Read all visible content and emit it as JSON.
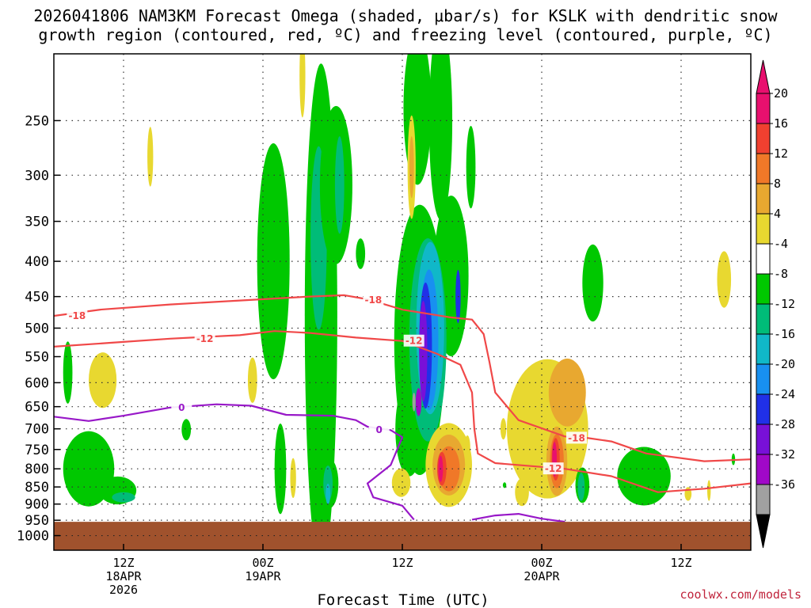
{
  "chart_data": {
    "type": "heatmap",
    "title_line1": "2026041806 NAM3KM Forecast Omega (shaded, μbar/s) for KSLK with dendritic snow",
    "title_line2": "growth region (contoured, red, ºC) and freezing level (contoured, purple, ºC)",
    "xlabel": "Forecast Time (UTC)",
    "credit": "coolwx.com/models",
    "y_axis": {
      "unit": "hPa",
      "scale": "log",
      "range": [
        1050,
        200
      ],
      "ticks": [
        250,
        300,
        350,
        400,
        450,
        500,
        550,
        600,
        650,
        700,
        750,
        800,
        850,
        900,
        950,
        1000
      ]
    },
    "x_axis": {
      "range_hours": [
        0,
        60
      ],
      "ticks": [
        {
          "hour": 6,
          "line1": "12Z",
          "line2": "18APR",
          "line3": "2026"
        },
        {
          "hour": 18,
          "line1": "00Z",
          "line2": "19APR",
          "line3": ""
        },
        {
          "hour": 30,
          "line1": "12Z",
          "line2": "",
          "line3": ""
        },
        {
          "hour": 42,
          "line1": "00Z",
          "line2": "20APR",
          "line3": ""
        },
        {
          "hour": 54,
          "line1": "12Z",
          "line2": "",
          "line3": ""
        }
      ]
    },
    "grid": true,
    "ground_surface_hPa": 955,
    "colorbar": {
      "labels": [
        "20",
        "16",
        "12",
        "8",
        "4",
        "-4",
        "-8",
        "-12",
        "-16",
        "-20",
        "-24",
        "-28",
        "-32",
        "-36"
      ],
      "bins": [
        {
          "lo": 20,
          "color": "#e8106e"
        },
        {
          "lo": 16,
          "color": "#f04030"
        },
        {
          "lo": 12,
          "color": "#f07828"
        },
        {
          "lo": 8,
          "color": "#e8a830"
        },
        {
          "lo": 4,
          "color": "#e8d830"
        },
        {
          "lo": -4,
          "color": "#ffffff"
        },
        {
          "lo": -8,
          "color": "#00c800"
        },
        {
          "lo": -12,
          "color": "#00bc78"
        },
        {
          "lo": -16,
          "color": "#10b8c8"
        },
        {
          "lo": -20,
          "color": "#1890f0"
        },
        {
          "lo": -24,
          "color": "#2030e8"
        },
        {
          "lo": -28,
          "color": "#7810d8"
        },
        {
          "lo": -32,
          "color": "#a008c8"
        },
        {
          "lo": -36,
          "color": "#a0a0a0"
        }
      ],
      "top_arrow_color": "#e8106e",
      "bottom_arrow_color": "#000000"
    },
    "contour_label_neg18": "-18",
    "contour_label_neg12": "-12",
    "contour_label_zero": "0",
    "isotherm_neg18": {
      "color": "#f04848",
      "points": [
        [
          0,
          480
        ],
        [
          4,
          470
        ],
        [
          10,
          462
        ],
        [
          16,
          456
        ],
        [
          22,
          450
        ],
        [
          25,
          448
        ],
        [
          27,
          454
        ],
        [
          30,
          470
        ],
        [
          34,
          482
        ],
        [
          36,
          486
        ],
        [
          37,
          510
        ],
        [
          37.5,
          560
        ],
        [
          38,
          620
        ],
        [
          40,
          680
        ],
        [
          44,
          718
        ],
        [
          46,
          722
        ],
        [
          48,
          730
        ],
        [
          51,
          760
        ],
        [
          56,
          780
        ],
        [
          60,
          775
        ]
      ],
      "labels": [
        [
          2,
          480
        ],
        [
          27.5,
          455
        ],
        [
          45,
          722
        ]
      ]
    },
    "isotherm_neg12": {
      "color": "#f04848",
      "points": [
        [
          0,
          532
        ],
        [
          5,
          525
        ],
        [
          10,
          518
        ],
        [
          16,
          512
        ],
        [
          19,
          505
        ],
        [
          22,
          508
        ],
        [
          26,
          516
        ],
        [
          30,
          522
        ],
        [
          33,
          545
        ],
        [
          35,
          565
        ],
        [
          36,
          620
        ],
        [
          36.2,
          700
        ],
        [
          36.5,
          760
        ],
        [
          38,
          785
        ],
        [
          44,
          800
        ],
        [
          48,
          820
        ],
        [
          52,
          865
        ],
        [
          56,
          855
        ],
        [
          60,
          840
        ]
      ],
      "labels": [
        [
          13,
          518
        ],
        [
          31,
          522
        ],
        [
          43,
          800
        ]
      ]
    },
    "freezing_level": {
      "color": "#9818c8",
      "points": [
        [
          0,
          672
        ],
        [
          3,
          682
        ],
        [
          6,
          670
        ],
        [
          10,
          652
        ],
        [
          14,
          645
        ],
        [
          17,
          648
        ],
        [
          20,
          668
        ],
        [
          24,
          670
        ],
        [
          26,
          680
        ],
        [
          27,
          695
        ],
        [
          29,
          703
        ],
        [
          30,
          720
        ],
        [
          29,
          790
        ],
        [
          27,
          840
        ],
        [
          27.5,
          880
        ],
        [
          30,
          905
        ],
        [
          31,
          948
        ]
      ],
      "points_b": [
        [
          36,
          948
        ],
        [
          38,
          935
        ],
        [
          40,
          930
        ],
        [
          42,
          945
        ],
        [
          44,
          955
        ]
      ],
      "labels": [
        [
          11,
          652
        ],
        [
          28,
          702
        ]
      ]
    },
    "omega_blobs": [
      {
        "value": -6,
        "cx": 1.2,
        "cy": 580,
        "rx": 0.4,
        "ry": 60
      },
      {
        "value": -6,
        "cx": 3.0,
        "cy": 800,
        "rx": 2.2,
        "ry": 100
      },
      {
        "value": -6,
        "cx": 5.5,
        "cy": 860,
        "rx": 1.6,
        "ry": 40
      },
      {
        "value": -10,
        "cx": 6.0,
        "cy": 880,
        "rx": 1.0,
        "ry": 15
      },
      {
        "value": 5,
        "cx": 4.2,
        "cy": 595,
        "rx": 1.2,
        "ry": 55
      },
      {
        "value": 5,
        "cx": 8.3,
        "cy": 282,
        "rx": 0.25,
        "ry": 28
      },
      {
        "value": -6,
        "cx": 11.4,
        "cy": 702,
        "rx": 0.4,
        "ry": 25
      },
      {
        "value": 5,
        "cx": 17.1,
        "cy": 595,
        "rx": 0.4,
        "ry": 45
      },
      {
        "value": -6,
        "cx": 18.9,
        "cy": 400,
        "rx": 1.4,
        "ry": 150
      },
      {
        "value": -6,
        "cx": 19.5,
        "cy": 800,
        "rx": 0.5,
        "ry": 120
      },
      {
        "value": 5,
        "cx": 20.6,
        "cy": 825,
        "rx": 0.25,
        "ry": 55
      },
      {
        "value": -6,
        "cx": 23.0,
        "cy": 480,
        "rx": 1.4,
        "ry": 330
      },
      {
        "value": -6,
        "cx": 23.7,
        "cy": 840,
        "rx": 0.8,
        "ry": 70
      },
      {
        "value": -10,
        "cx": 22.8,
        "cy": 370,
        "rx": 0.7,
        "ry": 110
      },
      {
        "value": -10,
        "cx": 23.6,
        "cy": 840,
        "rx": 0.4,
        "ry": 50
      },
      {
        "value": -14,
        "cx": 23.6,
        "cy": 870,
        "rx": 0.2,
        "ry": 30
      },
      {
        "value": 5,
        "cx": 21.4,
        "cy": 215,
        "rx": 0.25,
        "ry": 30
      },
      {
        "value": -6,
        "cx": 24.3,
        "cy": 310,
        "rx": 1.4,
        "ry": 80
      },
      {
        "value": -10,
        "cx": 24.6,
        "cy": 310,
        "rx": 0.4,
        "ry": 50
      },
      {
        "value": -6,
        "cx": 26.4,
        "cy": 390,
        "rx": 0.4,
        "ry": 20
      },
      {
        "value": -6,
        "cx": 30.6,
        "cy": 700,
        "rx": 1.2,
        "ry": 110
      },
      {
        "value": -6,
        "cx": 31.5,
        "cy": 520,
        "rx": 2.2,
        "ry": 220
      },
      {
        "value": -6,
        "cx": 31.3,
        "cy": 240,
        "rx": 1.2,
        "ry": 60
      },
      {
        "value": -6,
        "cx": 33.3,
        "cy": 250,
        "rx": 1.0,
        "ry": 80
      },
      {
        "value": -6,
        "cx": 34.2,
        "cy": 420,
        "rx": 1.5,
        "ry": 110
      },
      {
        "value": -6,
        "cx": 35.9,
        "cy": 292,
        "rx": 0.4,
        "ry": 40
      },
      {
        "value": 5,
        "cx": 30.8,
        "cy": 292,
        "rx": 0.35,
        "ry": 50
      },
      {
        "value": 10,
        "cx": 30.8,
        "cy": 292,
        "rx": 0.2,
        "ry": 30
      },
      {
        "value": -10,
        "cx": 32.2,
        "cy": 520,
        "rx": 1.6,
        "ry": 170
      },
      {
        "value": -14,
        "cx": 32.4,
        "cy": 500,
        "rx": 1.2,
        "ry": 140
      },
      {
        "value": -18,
        "cx": 32.3,
        "cy": 520,
        "rx": 0.8,
        "ry": 120
      },
      {
        "value": -22,
        "cx": 32.0,
        "cy": 530,
        "rx": 0.55,
        "ry": 110
      },
      {
        "value": -26,
        "cx": 31.8,
        "cy": 540,
        "rx": 0.35,
        "ry": 90
      },
      {
        "value": -30,
        "cx": 31.4,
        "cy": 640,
        "rx": 0.25,
        "ry": 30
      },
      {
        "value": -34,
        "cx": 31.0,
        "cy": 640,
        "rx": 0.14,
        "ry": 20
      },
      {
        "value": -22,
        "cx": 34.8,
        "cy": 450,
        "rx": 0.22,
        "ry": 40
      },
      {
        "value": 5,
        "cx": 29.9,
        "cy": 838,
        "rx": 0.8,
        "ry": 40
      },
      {
        "value": 5,
        "cx": 34.0,
        "cy": 790,
        "rx": 2.0,
        "ry": 110
      },
      {
        "value": 10,
        "cx": 34.0,
        "cy": 790,
        "rx": 1.4,
        "ry": 80
      },
      {
        "value": 14,
        "cx": 34.0,
        "cy": 800,
        "rx": 0.95,
        "ry": 60
      },
      {
        "value": 18,
        "cx": 33.4,
        "cy": 800,
        "rx": 0.4,
        "ry": 45
      },
      {
        "value": 22,
        "cx": 33.3,
        "cy": 800,
        "rx": 0.2,
        "ry": 35
      },
      {
        "value": 5,
        "cx": 35.6,
        "cy": 745,
        "rx": 0.25,
        "ry": 30
      },
      {
        "value": 5,
        "cx": 38.7,
        "cy": 700,
        "rx": 0.25,
        "ry": 25
      },
      {
        "value": -6,
        "cx": 38.8,
        "cy": 845,
        "rx": 0.15,
        "ry": 8
      },
      {
        "value": 5,
        "cx": 42.5,
        "cy": 700,
        "rx": 3.5,
        "ry": 160
      },
      {
        "value": 10,
        "cx": 44.2,
        "cy": 620,
        "rx": 1.6,
        "ry": 70
      },
      {
        "value": 5,
        "cx": 40.3,
        "cy": 865,
        "rx": 0.6,
        "ry": 40
      },
      {
        "value": 10,
        "cx": 43.3,
        "cy": 780,
        "rx": 0.9,
        "ry": 90
      },
      {
        "value": 14,
        "cx": 43.3,
        "cy": 780,
        "rx": 0.6,
        "ry": 70
      },
      {
        "value": 18,
        "cx": 43.2,
        "cy": 775,
        "rx": 0.35,
        "ry": 55
      },
      {
        "value": 22,
        "cx": 43.1,
        "cy": 775,
        "rx": 0.2,
        "ry": 45
      },
      {
        "value": -6,
        "cx": 45.5,
        "cy": 845,
        "rx": 0.6,
        "ry": 50
      },
      {
        "value": -10,
        "cx": 45.4,
        "cy": 850,
        "rx": 0.3,
        "ry": 40
      },
      {
        "value": -6,
        "cx": 46.4,
        "cy": 430,
        "rx": 0.9,
        "ry": 55
      },
      {
        "value": -6,
        "cx": 50.8,
        "cy": 820,
        "rx": 2.3,
        "ry": 80
      },
      {
        "value": 5,
        "cx": 54.6,
        "cy": 870,
        "rx": 0.3,
        "ry": 20
      },
      {
        "value": 5,
        "cx": 56.4,
        "cy": 860,
        "rx": 0.15,
        "ry": 30
      },
      {
        "value": 5,
        "cx": 57.7,
        "cy": 425,
        "rx": 0.6,
        "ry": 40
      },
      {
        "value": -6,
        "cx": 58.5,
        "cy": 775,
        "rx": 0.15,
        "ry": 15
      }
    ]
  }
}
